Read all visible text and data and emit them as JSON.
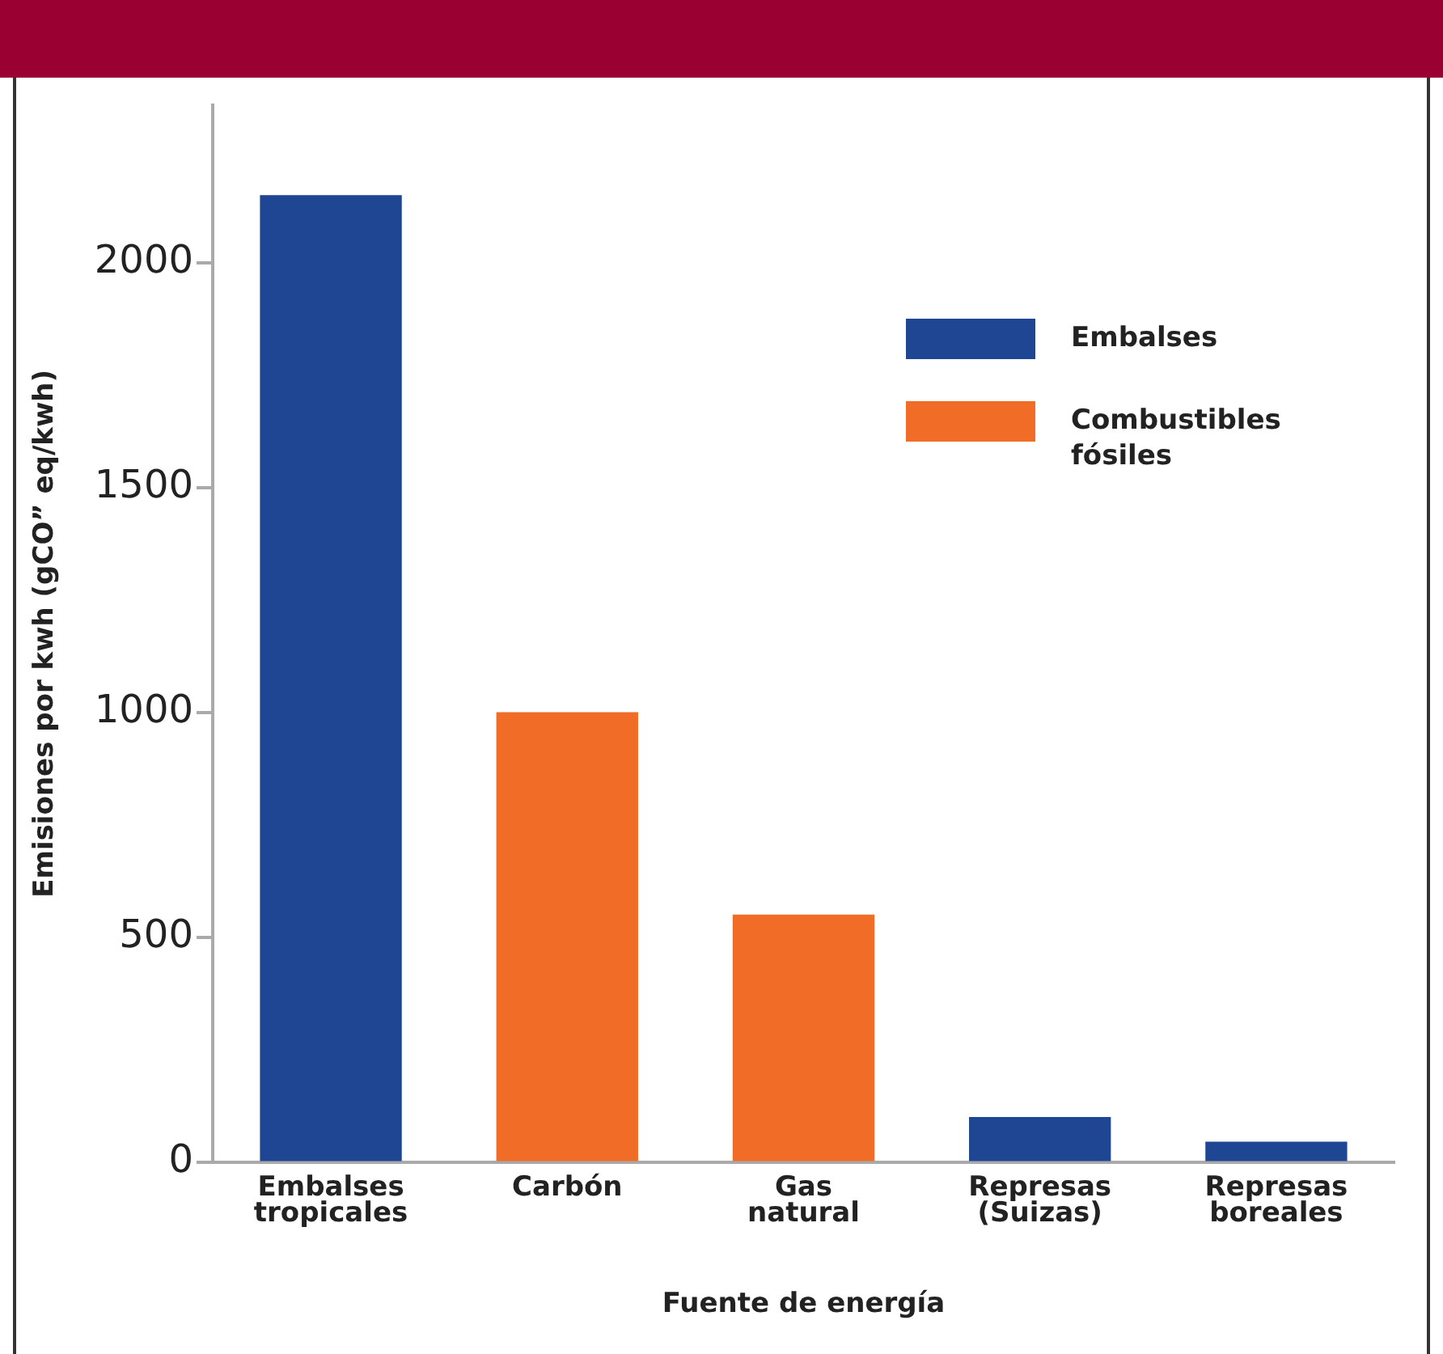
{
  "chart_data": {
    "type": "bar",
    "xlabel": "Fuente de energía",
    "ylabel": "Emisiones por kwh (gCO” eq/kwh)",
    "categories": [
      "Embalses tropicales",
      "Carbón",
      "Gas natural",
      "Represas (Suizas)",
      "Represas boreales"
    ],
    "series": [
      {
        "name": "Embalses",
        "color": "#1f4693",
        "values": [
          2150,
          null,
          null,
          100,
          45
        ]
      },
      {
        "name": "Combustibles fósiles",
        "color": "#f06c27",
        "values": [
          null,
          1000,
          550,
          null,
          null
        ]
      }
    ],
    "ylim": [
      0,
      2350
    ],
    "yticks": [
      0,
      500,
      1000,
      1500,
      2000
    ],
    "grid": false,
    "legend": "top right"
  }
}
